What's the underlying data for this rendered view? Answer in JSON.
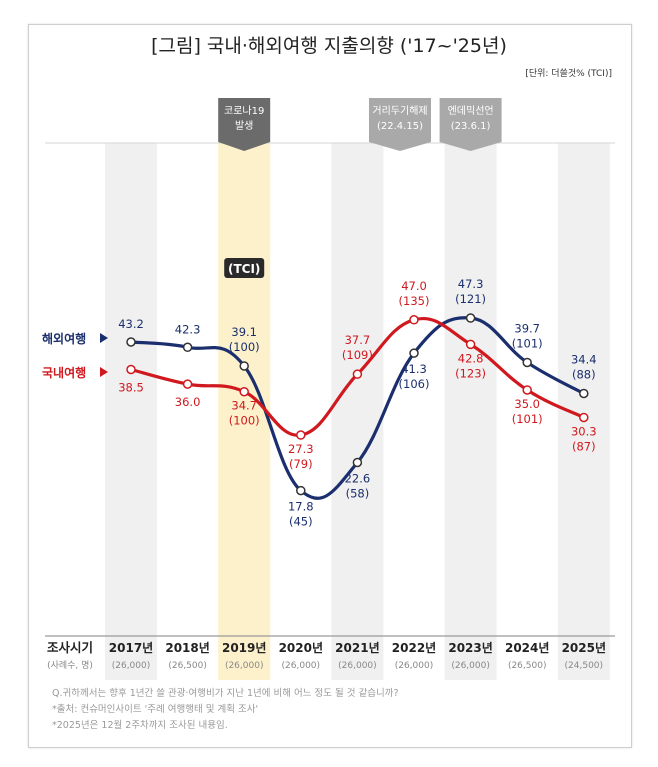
{
  "chart_data": {
    "type": "line",
    "title": "[그림] 국내·해외여행 지출의향 ('17~'25년)",
    "unit": "[단위: 더쓸것% (TCI)]",
    "tci_badge": "(TCI)",
    "x_header": "조사시기",
    "n_header": "(사례수, 명)",
    "categories": [
      "2017년",
      "2018년",
      "2019년",
      "2020년",
      "2021년",
      "2022년",
      "2023년",
      "2024년",
      "2025년"
    ],
    "sample_sizes": [
      "(26,000)",
      "(26,500)",
      "(26,000)",
      "(26,000)",
      "(26,000)",
      "(26,000)",
      "(26,000)",
      "(26,500)",
      "(24,500)"
    ],
    "series": [
      {
        "name": "해외여행",
        "color": "#1b2f6e",
        "values": [
          43.2,
          42.3,
          39.1,
          17.8,
          22.6,
          41.3,
          47.3,
          39.7,
          34.4
        ],
        "tci": [
          null,
          null,
          100,
          45,
          58,
          106,
          121,
          101,
          88
        ]
      },
      {
        "name": "국내여행",
        "color": "#d0191e",
        "values": [
          38.5,
          36.0,
          34.7,
          27.3,
          37.7,
          47.0,
          42.8,
          35.0,
          30.3
        ],
        "tci": [
          null,
          null,
          100,
          79,
          109,
          135,
          123,
          101,
          87
        ]
      }
    ],
    "highlight_category": "2019년",
    "highlight_color": "#fdf1cc",
    "annotations": [
      {
        "text": [
          "코로나19",
          "발생"
        ],
        "category": "2019년",
        "color": "#6b6b6b"
      },
      {
        "text": [
          "거리두기해제",
          "(22.4.15)"
        ],
        "category": "2022년",
        "color": "#a9a9a9"
      },
      {
        "text": [
          "엔데믹선언",
          "(23.6.1)"
        ],
        "category": "2023년",
        "color": "#a9a9a9"
      }
    ],
    "footnotes": [
      "Q.귀하께서는 향후 1년간 쓸 관광·여행비가 지난 1년에 비해 어느 정도 될 것 같습니까?",
      "*출처: 컨슈머인사이트 '주례 여행행태 및 계획 조사'",
      "*2025년은 12월 2주차까지 조사된 내용임."
    ]
  }
}
